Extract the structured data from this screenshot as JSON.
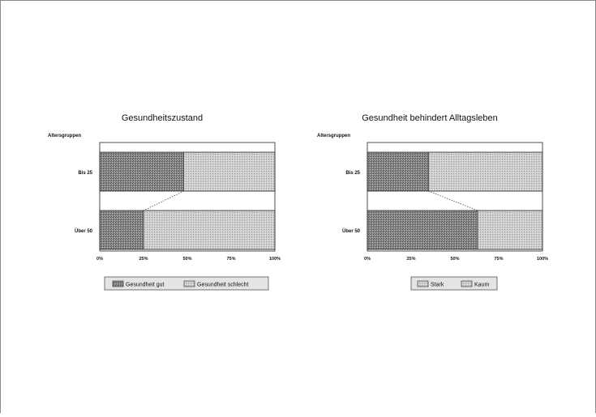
{
  "chart_data": [
    {
      "type": "bar",
      "orientation": "horizontal",
      "stacked": "percent",
      "title": "Gesundheitszustand",
      "ylabel": "Altersgruppen",
      "categories": [
        "Bis 25",
        "Über 50"
      ],
      "xlim": [
        0,
        100
      ],
      "xticks": [
        "0%",
        "25%",
        "50%",
        "75%",
        "100%"
      ],
      "series": [
        {
          "name": "Gesundheit gut",
          "values": [
            48,
            25
          ]
        },
        {
          "name": "Gesundheit schlecht",
          "values": [
            52,
            75
          ]
        }
      ],
      "connector_lines": true,
      "legend": "bottom",
      "grid": false
    },
    {
      "type": "bar",
      "orientation": "horizontal",
      "stacked": "percent",
      "title": "Gesundheit behindert Alltagsleben",
      "ylabel": "Altersgruppen",
      "categories": [
        "Bis 25",
        "Über 50"
      ],
      "xlim": [
        0,
        100
      ],
      "xticks": [
        "0%",
        "25%",
        "50%",
        "75%",
        "100%"
      ],
      "series": [
        {
          "name": "Stark",
          "values": [
            35,
            63
          ]
        },
        {
          "name": "Kaum",
          "values": [
            65,
            37
          ]
        }
      ],
      "connector_lines": true,
      "legend": "bottom",
      "grid": false
    }
  ],
  "colors": {
    "series_dark": "#8f8f8f",
    "series_light": "#cfcfcf",
    "legend_bg": "#e6e6e6",
    "frame": "#333333"
  }
}
